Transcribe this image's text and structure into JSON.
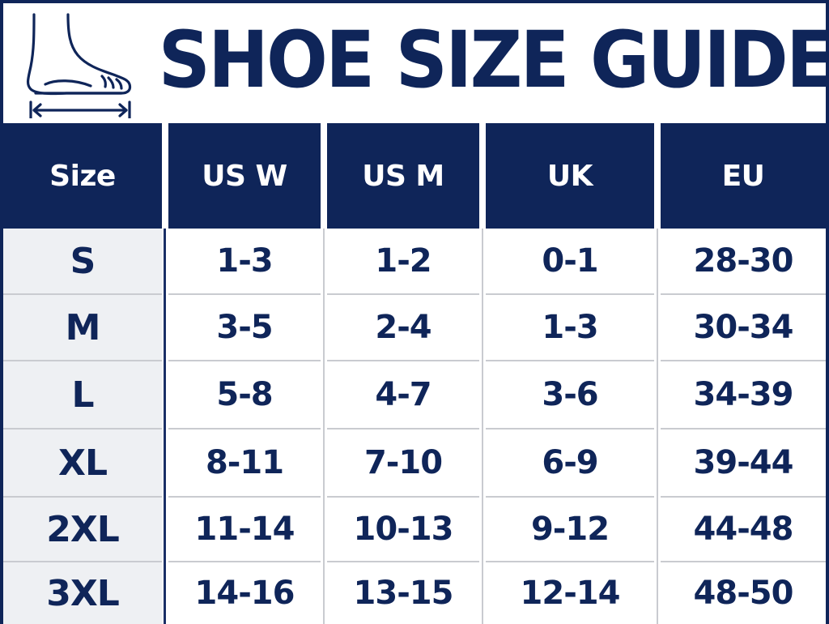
{
  "header": {
    "title": "SHOE SIZE GUIDE",
    "icon": "foot-measure-icon"
  },
  "table": {
    "columns": [
      "Size",
      "US W",
      "US M",
      "UK",
      "EU"
    ],
    "rows": [
      [
        "S",
        "1-3",
        "1-2",
        "0-1",
        "28-30"
      ],
      [
        "M",
        "3-5",
        "2-4",
        "1-3",
        "30-34"
      ],
      [
        "L",
        "5-8",
        "4-7",
        "3-6",
        "34-39"
      ],
      [
        "XL",
        "8-11",
        "7-10",
        "6-9",
        "39-44"
      ],
      [
        "2XL",
        "11-14",
        "10-13",
        "9-12",
        "44-48"
      ],
      [
        "3XL",
        "14-16",
        "13-15",
        "12-14",
        "48-50"
      ]
    ]
  },
  "colors": {
    "navy": "#0f2559",
    "header_text": "#ffffff",
    "first_column_bg": "#eef0f3",
    "grid_line": "#c9cbd0"
  }
}
